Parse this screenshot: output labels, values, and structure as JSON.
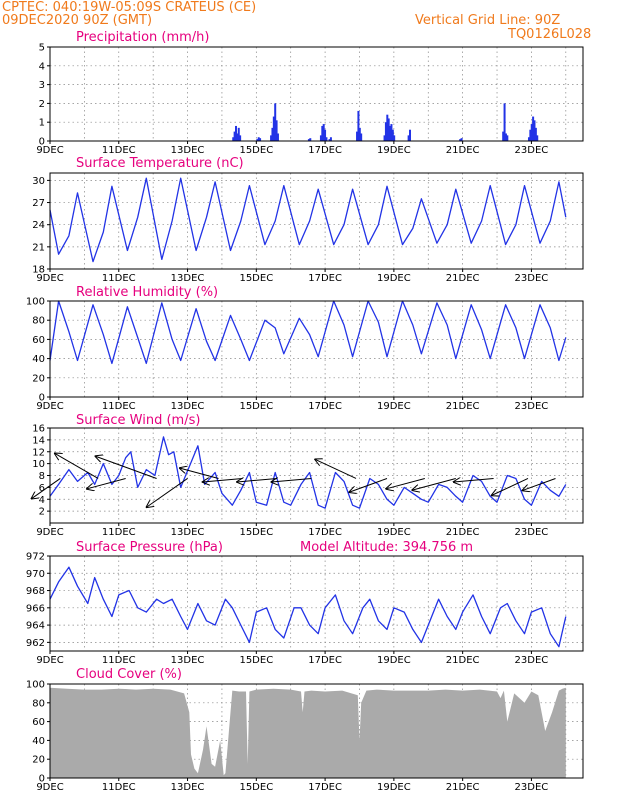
{
  "header": {
    "line1": "CPTEC:   040:19W-05:09S   CRATEUS (CE)",
    "line2": "09DEC2020 90Z (GMT)",
    "grid_note": "Vertical Grid Line: 90Z",
    "model_id": "TQ0126L028"
  },
  "colors": {
    "header": "#f07a1c",
    "title": "#e6007e",
    "line": "#2233e6",
    "cloud": "#aaaaaa",
    "arrow": "#000000"
  },
  "chart_data": [
    {
      "type": "bar",
      "title": "Precipitation (mm/h)",
      "ylim": [
        0,
        5
      ],
      "yticks": [
        "0",
        "1",
        "2",
        "3",
        "4",
        "5"
      ],
      "xticks": [
        "9DEC",
        "11DEC",
        "13DEC",
        "15DEC",
        "17DEC",
        "19DEC",
        "21DEC",
        "23DEC"
      ],
      "x_range_days": [
        9,
        24.5
      ],
      "bursts": [
        {
          "day": 14.3,
          "values": [
            0.2,
            0.5,
            0.8,
            0.4,
            0.7,
            0.3
          ]
        },
        {
          "day": 15.0,
          "values": [
            0.1,
            0.2,
            0.15
          ]
        },
        {
          "day": 15.4,
          "values": [
            0.3,
            0.7,
            1.3,
            2.0,
            1.1,
            0.4
          ]
        },
        {
          "day": 16.5,
          "values": [
            0.1,
            0.15
          ]
        },
        {
          "day": 16.85,
          "values": [
            0.3,
            0.8,
            0.9,
            0.6,
            0.2
          ]
        },
        {
          "day": 17.1,
          "values": [
            0.1,
            0.2
          ]
        },
        {
          "day": 17.9,
          "values": [
            0.5,
            1.6,
            0.7,
            0.4
          ]
        },
        {
          "day": 18.7,
          "values": [
            0.3,
            1.0,
            1.4,
            1.2,
            0.8,
            0.9,
            0.6,
            0.3
          ]
        },
        {
          "day": 19.4,
          "values": [
            0.3,
            0.6
          ]
        },
        {
          "day": 20.9,
          "values": [
            0.1,
            0.15
          ]
        },
        {
          "day": 22.15,
          "values": [
            0.5,
            2.0,
            0.4,
            0.3
          ]
        },
        {
          "day": 22.9,
          "values": [
            0.2,
            0.6,
            0.9,
            1.3,
            1.1,
            0.7,
            0.3
          ]
        }
      ]
    },
    {
      "type": "line",
      "title": "Surface Temperature (nC)",
      "ylim": [
        18,
        31
      ],
      "yticks": [
        "18",
        "21",
        "24",
        "27",
        "30"
      ],
      "xticks": [
        "9DEC",
        "11DEC",
        "13DEC",
        "15DEC",
        "17DEC",
        "19DEC",
        "21DEC",
        "23DEC"
      ],
      "x": [
        9.0,
        9.25,
        9.55,
        9.8,
        10.25,
        10.55,
        10.8,
        11.25,
        11.55,
        11.8,
        12.25,
        12.55,
        12.8,
        13.25,
        13.55,
        13.8,
        14.25,
        14.55,
        14.8,
        15.25,
        15.55,
        15.8,
        16.25,
        16.55,
        16.8,
        17.25,
        17.55,
        17.8,
        18.25,
        18.55,
        18.8,
        19.25,
        19.55,
        19.8,
        20.25,
        20.55,
        20.8,
        21.25,
        21.55,
        21.8,
        22.25,
        22.55,
        22.8,
        23.25,
        23.55,
        23.8,
        24.0
      ],
      "y": [
        26,
        20.0,
        22.5,
        28.3,
        19.0,
        23.0,
        29.2,
        20.5,
        25.0,
        30.3,
        19.3,
        24.5,
        30.3,
        20.5,
        25.0,
        29.8,
        20.5,
        24.5,
        29.3,
        21.3,
        24.5,
        29.3,
        21.3,
        24.5,
        28.8,
        21.3,
        24.0,
        28.8,
        21.3,
        24.0,
        29.2,
        21.3,
        23.5,
        27.5,
        21.5,
        24.0,
        28.8,
        21.5,
        24.5,
        29.3,
        21.3,
        24.0,
        29.3,
        21.5,
        24.5,
        29.8,
        25.0
      ]
    },
    {
      "type": "line",
      "title": "Relative Humidity (%)",
      "ylim": [
        0,
        100
      ],
      "yticks": [
        "0",
        "20",
        "40",
        "60",
        "80",
        "100"
      ],
      "xticks": [
        "9DEC",
        "11DEC",
        "13DEC",
        "15DEC",
        "17DEC",
        "19DEC",
        "21DEC",
        "23DEC"
      ],
      "x": [
        9.0,
        9.25,
        9.55,
        9.8,
        10.25,
        10.55,
        10.8,
        11.25,
        11.55,
        11.8,
        12.25,
        12.55,
        12.8,
        13.25,
        13.55,
        13.8,
        14.25,
        14.55,
        14.8,
        15.25,
        15.55,
        15.8,
        16.25,
        16.55,
        16.8,
        17.25,
        17.55,
        17.8,
        18.25,
        18.55,
        18.8,
        19.25,
        19.55,
        19.8,
        20.25,
        20.55,
        20.8,
        21.25,
        21.55,
        21.8,
        22.25,
        22.55,
        22.8,
        23.25,
        23.55,
        23.8,
        24.0
      ],
      "y": [
        38,
        100,
        68,
        38,
        96,
        65,
        35,
        94,
        62,
        35,
        98,
        60,
        38,
        92,
        58,
        38,
        85,
        60,
        38,
        80,
        72,
        45,
        82,
        65,
        42,
        100,
        75,
        42,
        100,
        78,
        42,
        100,
        75,
        45,
        98,
        75,
        40,
        96,
        70,
        40,
        96,
        72,
        40,
        96,
        72,
        38,
        62
      ]
    },
    {
      "type": "line",
      "title": "Surface Wind (m/s)",
      "ylim": [
        0,
        16
      ],
      "yticks": [
        "2",
        "4",
        "6",
        "8",
        "10",
        "12",
        "14",
        "16"
      ],
      "xticks": [
        "9DEC",
        "11DEC",
        "13DEC",
        "15DEC",
        "17DEC",
        "19DEC",
        "21DEC",
        "23DEC"
      ],
      "x": [
        9.0,
        9.25,
        9.55,
        9.8,
        10.1,
        10.3,
        10.55,
        10.8,
        11.0,
        11.2,
        11.35,
        11.55,
        11.8,
        12.05,
        12.3,
        12.45,
        12.6,
        12.8,
        13.05,
        13.3,
        13.5,
        13.8,
        14.0,
        14.3,
        14.55,
        14.8,
        15.0,
        15.3,
        15.55,
        15.8,
        16.0,
        16.3,
        16.55,
        16.8,
        17.0,
        17.3,
        17.55,
        17.8,
        18.0,
        18.3,
        18.55,
        18.8,
        19.0,
        19.3,
        19.55,
        19.8,
        20.0,
        20.3,
        20.55,
        20.8,
        21.0,
        21.3,
        21.55,
        21.8,
        22.0,
        22.3,
        22.55,
        22.8,
        23.0,
        23.3,
        23.55,
        23.8,
        24.0
      ],
      "y": [
        4.5,
        6.5,
        9.0,
        7.0,
        8.5,
        6.5,
        10.0,
        6.5,
        8.0,
        11.0,
        12.0,
        6.0,
        9.0,
        8.0,
        14.5,
        11.5,
        12.0,
        6.0,
        9.5,
        13.0,
        6.5,
        8.5,
        5.0,
        3.0,
        5.5,
        8.5,
        3.5,
        3.0,
        8.5,
        3.5,
        3.0,
        6.5,
        8.5,
        3.0,
        2.5,
        8.5,
        7.0,
        3.0,
        2.5,
        7.5,
        6.5,
        4.0,
        3.0,
        6.0,
        5.0,
        4.0,
        3.5,
        6.5,
        6.0,
        4.5,
        3.5,
        8.0,
        7.0,
        4.5,
        3.5,
        8.0,
        7.5,
        4.0,
        3.0,
        7.0,
        5.5,
        4.5,
        6.5
      ],
      "vectors": [
        {
          "day": 9.3,
          "speed": 7,
          "dir_deg": 215
        },
        {
          "day": 10.4,
          "speed": 10,
          "dir_deg": 150
        },
        {
          "day": 11.2,
          "speed": 8,
          "dir_deg": 195
        },
        {
          "day": 12.1,
          "speed": 13,
          "dir_deg": 160
        },
        {
          "day": 13.0,
          "speed": 10,
          "dir_deg": 215
        },
        {
          "day": 13.9,
          "speed": 8,
          "dir_deg": 165
        },
        {
          "day": 14.6,
          "speed": 8,
          "dir_deg": 185
        },
        {
          "day": 15.6,
          "speed": 8,
          "dir_deg": 185
        },
        {
          "day": 16.6,
          "speed": 8,
          "dir_deg": 185
        },
        {
          "day": 17.9,
          "speed": 9,
          "dir_deg": 155
        },
        {
          "day": 18.8,
          "speed": 8,
          "dir_deg": 200
        },
        {
          "day": 19.9,
          "speed": 8,
          "dir_deg": 195
        },
        {
          "day": 20.8,
          "speed": 9,
          "dir_deg": 195
        },
        {
          "day": 21.9,
          "speed": 8,
          "dir_deg": 185
        },
        {
          "day": 22.9,
          "speed": 8,
          "dir_deg": 205
        },
        {
          "day": 23.7,
          "speed": 7,
          "dir_deg": 200
        }
      ]
    },
    {
      "type": "line",
      "title": "Surface Pressure (hPa)",
      "annotation": "Model Altitude: 394.756 m",
      "ylim": [
        961,
        972
      ],
      "yticks": [
        "962",
        "964",
        "966",
        "968",
        "970",
        "972"
      ],
      "xticks": [
        "9DEC",
        "11DEC",
        "13DEC",
        "15DEC",
        "17DEC",
        "19DEC",
        "21DEC",
        "23DEC"
      ],
      "x": [
        9.0,
        9.25,
        9.55,
        9.8,
        10.1,
        10.3,
        10.55,
        10.8,
        11.0,
        11.3,
        11.55,
        11.8,
        12.1,
        12.3,
        12.55,
        12.8,
        13.0,
        13.3,
        13.55,
        13.8,
        14.1,
        14.3,
        14.55,
        14.8,
        15.0,
        15.3,
        15.55,
        15.8,
        16.1,
        16.3,
        16.55,
        16.8,
        17.0,
        17.3,
        17.55,
        17.8,
        18.1,
        18.3,
        18.55,
        18.8,
        19.0,
        19.3,
        19.55,
        19.8,
        20.1,
        20.3,
        20.55,
        20.8,
        21.0,
        21.3,
        21.55,
        21.8,
        22.1,
        22.3,
        22.55,
        22.8,
        23.0,
        23.3,
        23.55,
        23.8,
        24.0
      ],
      "y": [
        967.0,
        969.0,
        970.7,
        968.5,
        966.5,
        969.5,
        967.0,
        965.0,
        967.5,
        968.0,
        966.0,
        965.5,
        967.0,
        966.5,
        967.0,
        965.0,
        963.5,
        966.5,
        964.5,
        964.0,
        967.0,
        966.0,
        964.0,
        962.0,
        965.5,
        966.0,
        963.5,
        962.5,
        966.0,
        966.0,
        964.0,
        963.0,
        966.0,
        967.5,
        964.5,
        963.0,
        966.0,
        967.0,
        964.5,
        963.5,
        966.0,
        965.5,
        963.5,
        962.0,
        965.0,
        967.0,
        965.0,
        963.5,
        965.5,
        967.5,
        965.0,
        963.0,
        966.0,
        966.5,
        964.5,
        963.0,
        965.5,
        966.0,
        963.0,
        961.5,
        965.0
      ]
    },
    {
      "type": "area",
      "title": "Cloud Cover (%)",
      "ylim": [
        0,
        100
      ],
      "yticks": [
        "0",
        "20",
        "40",
        "60",
        "80",
        "100"
      ],
      "xticks": [
        "9DEC",
        "11DEC",
        "13DEC",
        "15DEC",
        "17DEC",
        "19DEC",
        "21DEC",
        "23DEC"
      ],
      "x": [
        9.0,
        9.5,
        10.0,
        10.5,
        11.0,
        11.5,
        12.0,
        12.5,
        12.9,
        13.05,
        13.1,
        13.2,
        13.3,
        13.45,
        13.55,
        13.7,
        13.8,
        13.95,
        14.05,
        14.1,
        14.3,
        14.5,
        14.7,
        14.75,
        14.8,
        15.0,
        15.5,
        16.0,
        16.3,
        16.35,
        16.4,
        16.6,
        17.0,
        17.5,
        17.95,
        18.0,
        18.05,
        18.2,
        18.5,
        19.0,
        19.5,
        20.0,
        20.5,
        21.0,
        21.5,
        22.0,
        22.1,
        22.2,
        22.3,
        22.5,
        22.8,
        23.0,
        23.2,
        23.4,
        23.6,
        23.8,
        23.9,
        24.0
      ],
      "y": [
        96,
        95,
        94,
        94,
        95,
        94,
        95,
        94,
        90,
        70,
        25,
        10,
        5,
        30,
        55,
        15,
        12,
        40,
        3,
        5,
        93,
        92,
        92,
        15,
        92,
        94,
        95,
        94,
        92,
        70,
        92,
        93,
        92,
        93,
        88,
        40,
        80,
        93,
        94,
        93,
        93,
        93,
        94,
        93,
        94,
        92,
        85,
        93,
        60,
        90,
        80,
        92,
        88,
        50,
        70,
        93,
        95,
        96
      ]
    }
  ]
}
